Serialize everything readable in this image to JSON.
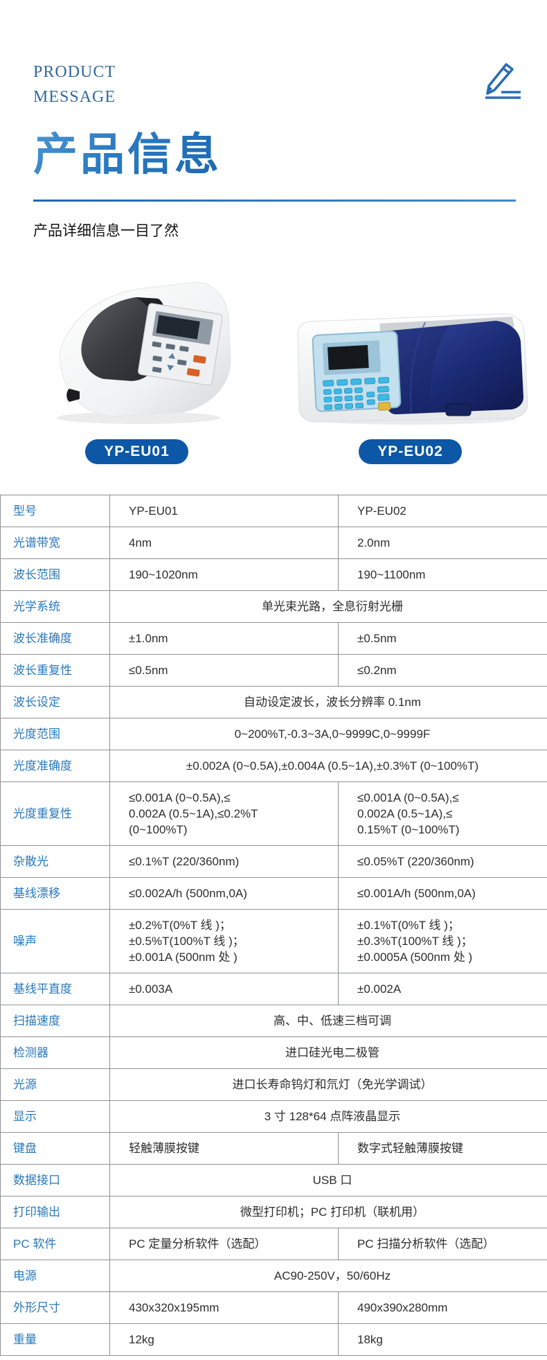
{
  "header": {
    "eyebrow_line1": "PRODUCT",
    "eyebrow_line2": "MESSAGE",
    "title": "产品信息",
    "subtitle": "产品详细信息一目了然",
    "icon": "pencil-icon"
  },
  "products": [
    {
      "model": "YP-EU01",
      "image": "spectrophotometer with dark gray sample lid and orange-key control panel"
    },
    {
      "model": "YP-EU02",
      "image": "spectrophotometer with light blue numeric keypad panel and navy blue lid"
    }
  ],
  "colors": {
    "accent_blue": "#2878be",
    "title_blue_light": "#4e97d3",
    "title_blue_dark": "#1b67b0",
    "badge_blue": "#0d57a7",
    "table_border_gray": "#8f9194",
    "value_text": "#2d2d2d",
    "lid_dark_gray": "#3c3c41",
    "lid_navy": "#1b2a74",
    "keypad_panel_blue": "#c3e0ef",
    "key_cyan": "#3db9e6",
    "key_orange": "#d95f27",
    "key_yellow": "#e0b83f"
  },
  "spec_table": {
    "rows": [
      {
        "label": "型号",
        "col1": "YP-EU01",
        "col2": "YP-EU02"
      },
      {
        "label": "光谱带宽",
        "col1": "4nm",
        "col2": "2.0nm"
      },
      {
        "label": "波长范围",
        "col1": "190~1020nm",
        "col2": "190~1100nm"
      },
      {
        "label": "光学系统",
        "value": "单光束光路，全息衍射光栅"
      },
      {
        "label": "波长准确度",
        "col1": "±1.0nm",
        "col2": "±0.5nm"
      },
      {
        "label": "波长重复性",
        "col1": "≤0.5nm",
        "col2": "≤0.2nm"
      },
      {
        "label": "波长设定",
        "value": "自动设定波长，波长分辨率 0.1nm"
      },
      {
        "label": "光度范围",
        "value": "0~200%T,-0.3~3A,0~9999C,0~9999F"
      },
      {
        "label": "光度准确度",
        "value": "±0.002A (0~0.5A),±0.004A (0.5~1A),±0.3%T (0~100%T)"
      },
      {
        "label": "光度重复性",
        "col1": "≤0.001A (0~0.5A),≤\n0.002A (0.5~1A),≤0.2%T\n(0~100%T)",
        "col2": "≤0.001A (0~0.5A),≤\n0.002A (0.5~1A),≤\n0.15%T (0~100%T)"
      },
      {
        "label": "杂散光",
        "col1": "≤0.1%T (220/360nm)",
        "col2": "≤0.05%T (220/360nm)"
      },
      {
        "label": "基线漂移",
        "col1": "≤0.002A/h (500nm,0A)",
        "col2": "≤0.001A/h (500nm,0A)"
      },
      {
        "label": "噪声",
        "col1": "±0.2%T(0%T 线 )；\n±0.5%T(100%T 线 )；\n±0.001A (500nm 处 )",
        "col2": "±0.1%T(0%T 线 )；\n±0.3%T(100%T 线 )；\n±0.0005A (500nm 处 )"
      },
      {
        "label": "基线平直度",
        "col1": "±0.003A",
        "col2": "±0.002A"
      },
      {
        "label": "扫描速度",
        "value": "高、中、低速三档可调"
      },
      {
        "label": "检测器",
        "value": "进口硅光电二极管"
      },
      {
        "label": "光源",
        "value": "进口长寿命钨灯和氘灯（免光学调试）"
      },
      {
        "label": "显示",
        "value": "3 寸 128*64 点阵液晶显示"
      },
      {
        "label": "键盘",
        "col1": "轻触薄膜按键",
        "col2": "数字式轻触薄膜按键"
      },
      {
        "label": "数据接口",
        "value": "USB 口"
      },
      {
        "label": "打印输出",
        "value": "微型打印机；PC 打印机（联机用）"
      },
      {
        "label": "PC 软件",
        "col1": "PC 定量分析软件（选配）",
        "col2": "PC 扫描分析软件（选配）"
      },
      {
        "label": "电源",
        "value": "AC90-250V，50/60Hz"
      },
      {
        "label": "外形尺寸",
        "col1": "430x320x195mm",
        "col2": "490x390x280mm"
      },
      {
        "label": "重量",
        "col1": "12kg",
        "col2": "18kg"
      }
    ]
  }
}
